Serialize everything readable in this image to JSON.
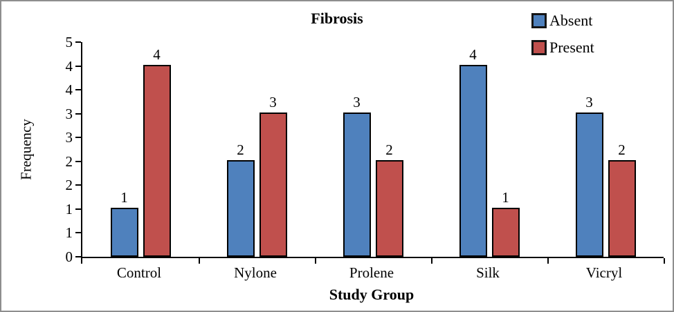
{
  "frame": {
    "background": "#ffffff",
    "border_color": "#8e8e8e"
  },
  "chart_data": {
    "type": "bar",
    "title": "Fibrosis",
    "xlabel": "Study Group",
    "ylabel": "Frequency",
    "categories": [
      "Control",
      "Nylone",
      "Prolene",
      "Silk",
      "Vicryl"
    ],
    "series": [
      {
        "name": "Absent",
        "color": "#4F81BD",
        "values": [
          1,
          2,
          3,
          4,
          3
        ]
      },
      {
        "name": "Present",
        "color": "#C0504D",
        "values": [
          4,
          3,
          2,
          1,
          2
        ]
      }
    ],
    "ylim": [
      0,
      4.5
    ],
    "ytick_step": 0.5,
    "ytick_labels_bottom_to_top": [
      "0",
      "1",
      "1",
      "2",
      "2",
      "3",
      "3",
      "4",
      "4",
      "5"
    ],
    "bar_border_color": "#000000",
    "axis_color": "#000000",
    "grid": false,
    "data_labels": true,
    "legend_position": "top-right"
  }
}
